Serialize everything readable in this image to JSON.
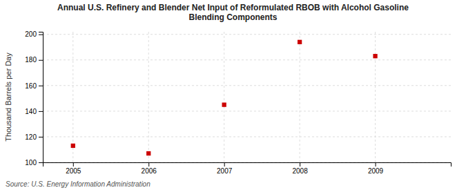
{
  "chart_data": {
    "type": "scatter",
    "title": "Annual U.S. Refinery and Blender Net Input of Reformulated RBOB with Alcohol Gasoline\nBlending Components",
    "ylabel": "Thousand Barrels per Day",
    "annotations": [
      "Source: U.S. Energy Information Administration"
    ],
    "x": [
      2005,
      2006,
      2007,
      2008,
      2009
    ],
    "values": [
      113,
      107,
      145,
      194,
      183
    ],
    "xlim": [
      2004.6,
      2010.0
    ],
    "ylim": [
      100,
      202
    ],
    "xticks": [
      2005,
      2006,
      2007,
      2008,
      2009
    ],
    "yticks": [
      100,
      120,
      140,
      160,
      180,
      200
    ],
    "color": "#cc0000",
    "marker": "square",
    "grid": true
  }
}
